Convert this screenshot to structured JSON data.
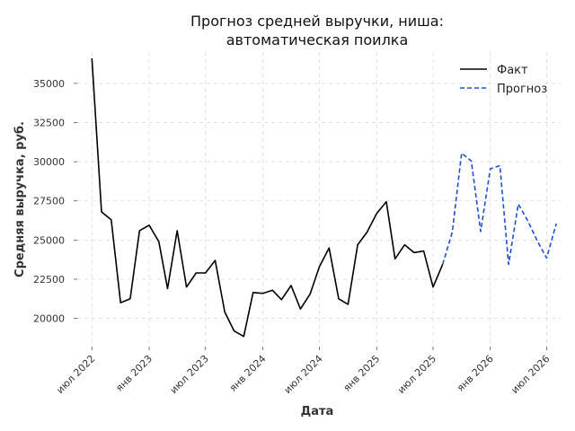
{
  "chart_data": {
    "type": "line",
    "title": [
      "Прогноз средней выручки, ниша:",
      "автоматическая поилка"
    ],
    "xlabel": "Дата",
    "ylabel": "Средняя выручка, руб.",
    "ylim": [
      18200,
      37000
    ],
    "xlim": [
      "2022-05-15",
      "2026-08-15"
    ],
    "yticks": [
      20000,
      22500,
      25000,
      27500,
      30000,
      32500,
      35000
    ],
    "ytick_labels": [
      "20000",
      "22500",
      "25000",
      "27500",
      "30000",
      "32500",
      "35000"
    ],
    "xticks": [
      "2022-07-01",
      "2023-01-01",
      "2023-07-01",
      "2024-01-01",
      "2024-07-01",
      "2025-01-01",
      "2025-07-01",
      "2026-01-01",
      "2026-07-01"
    ],
    "xtick_labels": [
      "июл 2022",
      "янв 2023",
      "июл 2023",
      "янв 2024",
      "июл 2024",
      "янв 2025",
      "июл 2025",
      "янв 2026",
      "июл 2026"
    ],
    "grid": true,
    "legend_position": "top-right",
    "series": [
      {
        "name": "Факт",
        "color": "#000000",
        "style": "solid",
        "x": [
          "2022-07-01",
          "2022-08-01",
          "2022-09-01",
          "2022-10-01",
          "2022-11-01",
          "2022-12-01",
          "2023-01-01",
          "2023-02-01",
          "2023-03-01",
          "2023-04-01",
          "2023-05-01",
          "2023-06-01",
          "2023-07-01",
          "2023-08-01",
          "2023-09-01",
          "2023-10-01",
          "2023-11-01",
          "2023-12-01",
          "2024-01-01",
          "2024-02-01",
          "2024-03-01",
          "2024-04-01",
          "2024-05-01",
          "2024-06-01",
          "2024-07-01",
          "2024-08-01",
          "2024-09-01",
          "2024-10-01",
          "2024-11-01",
          "2024-12-01",
          "2025-01-01",
          "2025-02-01",
          "2025-03-01",
          "2025-04-01",
          "2025-05-01",
          "2025-06-01",
          "2025-07-01",
          "2025-08-01"
        ],
        "y": [
          36600,
          26800,
          26300,
          21000,
          21250,
          25600,
          25950,
          24900,
          21900,
          25600,
          22000,
          22900,
          22900,
          23700,
          20400,
          19200,
          18850,
          21650,
          21600,
          21800,
          21200,
          22100,
          20600,
          21550,
          23300,
          24500,
          21250,
          20900,
          24700,
          25500,
          26700,
          27450,
          23800,
          24700,
          24200,
          24300,
          22000,
          23450
        ]
      },
      {
        "name": "Прогноз",
        "color": "#1f4fd1",
        "style": "dashed",
        "x": [
          "2025-08-01",
          "2025-09-01",
          "2025-10-01",
          "2025-11-01",
          "2025-12-01",
          "2026-01-01",
          "2026-02-01",
          "2026-03-01",
          "2026-04-01",
          "2026-05-01",
          "2026-06-01",
          "2026-07-01",
          "2026-08-01"
        ],
        "y": [
          23450,
          25500,
          30550,
          30050,
          25550,
          29550,
          29750,
          23450,
          27300,
          26250,
          24950,
          23850,
          26050
        ]
      }
    ]
  }
}
